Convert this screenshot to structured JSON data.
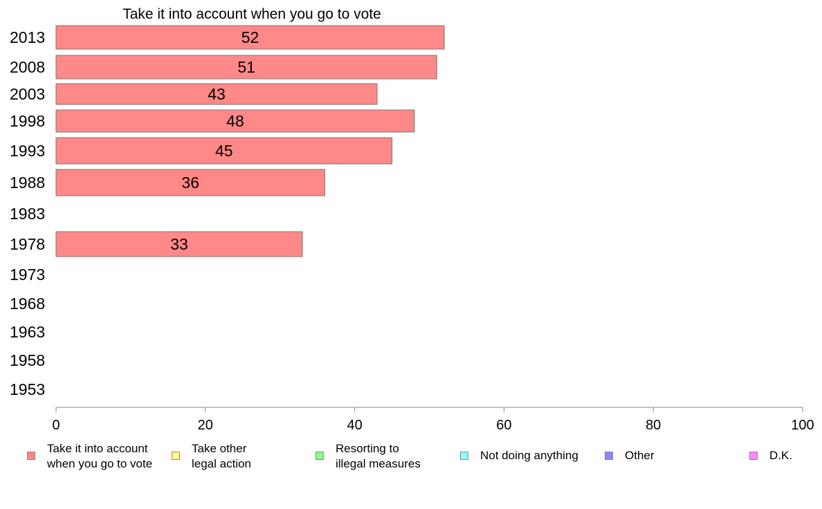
{
  "chart_data": {
    "type": "bar",
    "orientation": "horizontal",
    "title": "Take it into account when you go to vote",
    "xlabel": "",
    "ylabel": "",
    "xlim": [
      0,
      100
    ],
    "x_ticks": [
      "0",
      "20",
      "40",
      "60",
      "80",
      "100"
    ],
    "categories": [
      "2013",
      "2008",
      "2003",
      "1998",
      "1993",
      "1988",
      "1983",
      "1978",
      "1973",
      "1968",
      "1963",
      "1958",
      "1953"
    ],
    "series": [
      {
        "name": "Take it into account when you go to vote",
        "color": "#ff8888",
        "values": [
          52,
          51,
          43,
          48,
          45,
          36,
          null,
          33,
          null,
          null,
          null,
          null,
          null
        ],
        "labels": [
          "52",
          "51",
          "43",
          "48",
          "45",
          "36",
          "",
          "33",
          "",
          "",
          "",
          "",
          ""
        ]
      }
    ],
    "grid": false,
    "legend": {
      "position": "bottom",
      "items": [
        {
          "label": "Take it into account\nwhen you go to vote",
          "color": "#ff8888"
        },
        {
          "label": "Take other\nlegal action",
          "color": "#ffff88"
        },
        {
          "label": "Resorting to\nillegal measures",
          "color": "#88ff88"
        },
        {
          "label": "Not doing anything",
          "color": "#88ffff"
        },
        {
          "label": "Other",
          "color": "#8888ff"
        },
        {
          "label": "D.K.",
          "color": "#ff88ff"
        }
      ]
    }
  }
}
